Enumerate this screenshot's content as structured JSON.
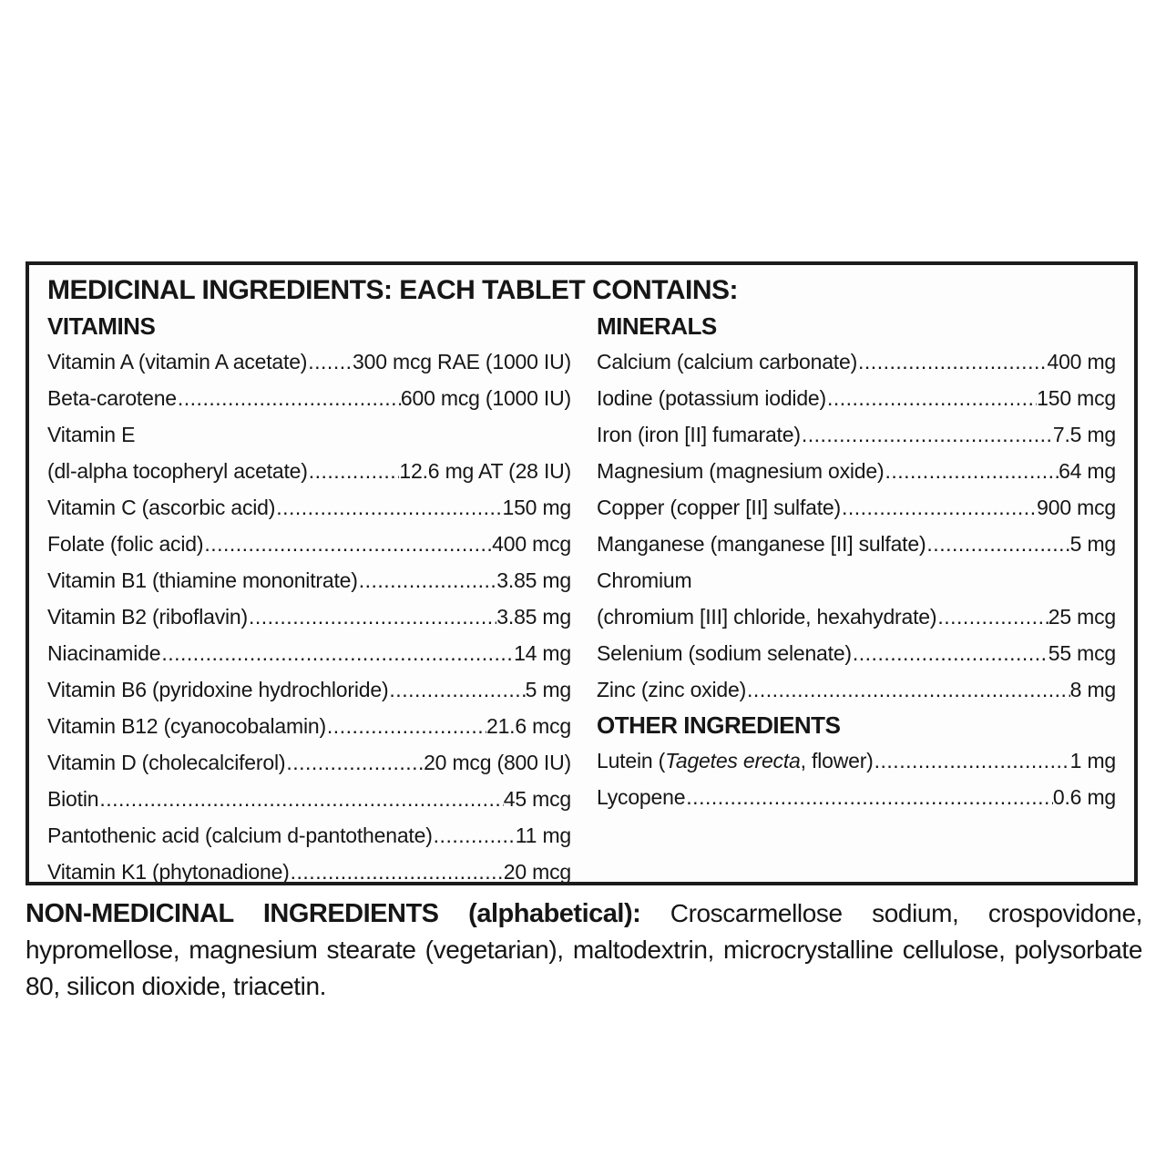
{
  "box": {
    "title": "MEDICINAL INGREDIENTS: EACH TABLET CONTAINS:",
    "vitamins": {
      "heading": "VITAMINS",
      "rows": [
        {
          "name": "Vitamin A (vitamin A acetate)",
          "value": "300 mcg RAE (1000 IU)"
        },
        {
          "name": "Beta-carotene",
          "value": "600 mcg (1000 IU)"
        },
        {
          "name": "Vitamin E",
          "value": ""
        },
        {
          "name": "(dl-alpha tocopheryl acetate)",
          "value": "12.6 mg AT (28 IU)"
        },
        {
          "name": "Vitamin C (ascorbic acid)",
          "value": "150 mg"
        },
        {
          "name": "Folate (folic acid)",
          "value": "400 mcg"
        },
        {
          "name": "Vitamin B1 (thiamine mononitrate)",
          "value": "3.85 mg"
        },
        {
          "name": "Vitamin B2 (riboflavin)",
          "value": "3.85 mg"
        },
        {
          "name": "Niacinamide",
          "value": "14 mg"
        },
        {
          "name": "Vitamin B6 (pyridoxine hydrochloride)",
          "value": "5 mg"
        },
        {
          "name": "Vitamin B12 (cyanocobalamin)",
          "value": "21.6 mcg"
        },
        {
          "name": "Vitamin D (cholecalciferol)",
          "value": "20 mcg (800 IU)"
        },
        {
          "name": "Biotin",
          "value": "45 mcg"
        },
        {
          "name": "Pantothenic acid (calcium d-pantothenate)",
          "value": "11 mg"
        },
        {
          "name": "Vitamin K1 (phytonadione)",
          "value": "20 mcg"
        }
      ]
    },
    "minerals": {
      "heading": "MINERALS",
      "rows": [
        {
          "name": "Calcium (calcium carbonate)",
          "value": "400 mg"
        },
        {
          "name": "Iodine (potassium iodide)",
          "value": "150 mcg"
        },
        {
          "name": "Iron (iron [II] fumarate)",
          "value": "7.5 mg"
        },
        {
          "name": "Magnesium (magnesium oxide)",
          "value": "64 mg"
        },
        {
          "name": "Copper (copper [II] sulfate)",
          "value": "900 mcg"
        },
        {
          "name": "Manganese (manganese [II] sulfate)",
          "value": "5 mg"
        },
        {
          "name": "Chromium",
          "value": ""
        },
        {
          "name": "(chromium [III] chloride, hexahydrate)",
          "value": "25 mcg"
        },
        {
          "name": "Selenium (sodium selenate)",
          "value": "55 mcg"
        },
        {
          "name": "Zinc (zinc oxide)",
          "value": "8 mg"
        }
      ]
    },
    "other_ingredients": {
      "heading": "OTHER INGREDIENTS",
      "rows": [
        {
          "name_pre": "Lutein (",
          "name_italic": "Tagetes erecta",
          "name_post": ", flower)",
          "value": "1 mg"
        },
        {
          "name": "Lycopene",
          "value": "0.6 mg"
        }
      ]
    }
  },
  "non_medicinal": {
    "heading": "NON-MEDICINAL INGREDIENTS (alphabetical):",
    "text": "Croscarmellose sodium, crospovidone, hypromellose, magnesium stearate (vegetarian), maltodextrin, microcrystalline cellulose, polysorbate 80, silicon dioxide, triacetin."
  }
}
